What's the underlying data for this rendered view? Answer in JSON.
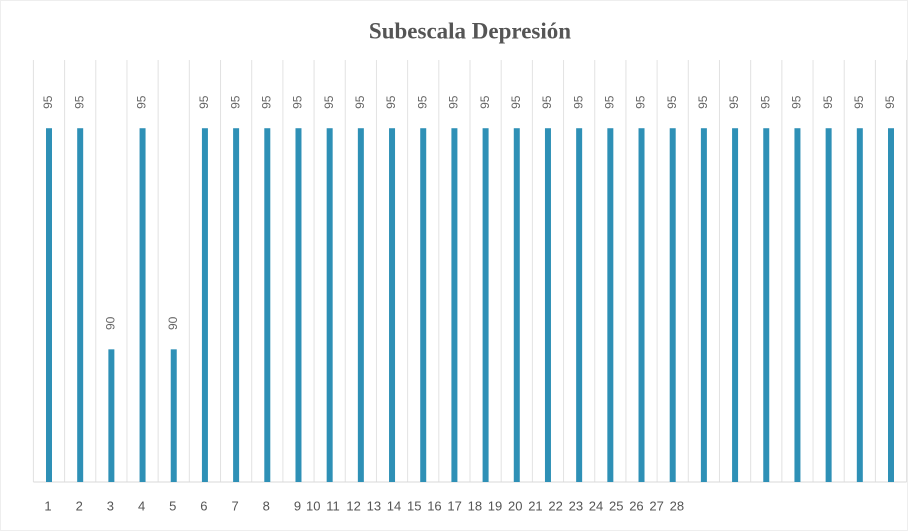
{
  "chart_data": {
    "type": "bar",
    "title": "Subescala Depresión",
    "categories": [
      "1",
      "2",
      "3",
      "4",
      "5",
      "6",
      "7",
      "8",
      "9",
      "10",
      "11",
      "12",
      "13",
      "14",
      "15",
      "16",
      "17",
      "18",
      "19",
      "20",
      "21",
      "22",
      "23",
      "24",
      "25",
      "26",
      "27",
      "28"
    ],
    "values": [
      95,
      95,
      90,
      95,
      90,
      95,
      95,
      95,
      95,
      95,
      95,
      95,
      95,
      95,
      95,
      95,
      95,
      95,
      95,
      95,
      95,
      95,
      95,
      95,
      95,
      95,
      95,
      95
    ],
    "color": "#2e90b6",
    "ylim": [
      87,
      96
    ]
  }
}
